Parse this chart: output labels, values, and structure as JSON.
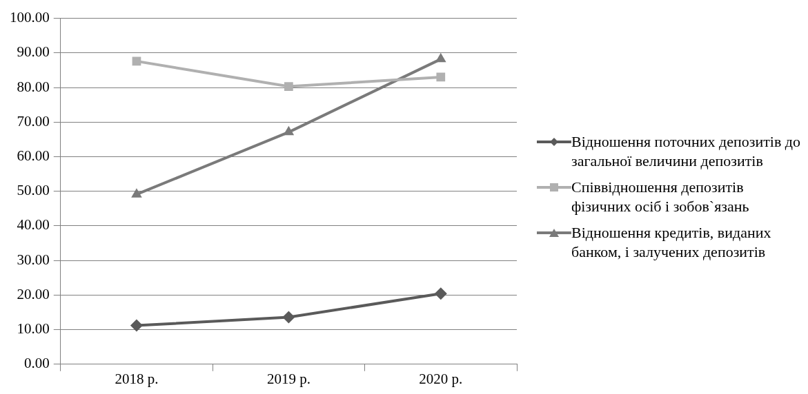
{
  "chart_data": {
    "type": "line",
    "categories": [
      "2018 р.",
      "2019 р.",
      "2020 р."
    ],
    "series": [
      {
        "name": "Відношення поточних депозитів до загальної величини депозитів",
        "color": "#5a5a5a",
        "marker": "diamond",
        "values": [
          11.2,
          13.6,
          20.4
        ]
      },
      {
        "name": "Співвідношення депозитів фізичних осіб і зобов`язань",
        "color": "#b0b0b0",
        "marker": "square",
        "values": [
          87.6,
          80.3,
          83.0
        ]
      },
      {
        "name": "Відношення кредитів, виданих банком, і залучених депозитів",
        "color": "#7a7a7a",
        "marker": "triangle",
        "values": [
          49.1,
          67.1,
          88.2
        ]
      }
    ],
    "ylim": [
      0,
      100
    ],
    "yticks": [
      {
        "value": 0,
        "label": "0.00"
      },
      {
        "value": 10,
        "label": "10.00"
      },
      {
        "value": 20,
        "label": "20.00"
      },
      {
        "value": 30,
        "label": "30.00"
      },
      {
        "value": 40,
        "label": "40.00"
      },
      {
        "value": 50,
        "label": "50.00"
      },
      {
        "value": 60,
        "label": "60.00"
      },
      {
        "value": 70,
        "label": "70.00"
      },
      {
        "value": 80,
        "label": "80.00"
      },
      {
        "value": 90,
        "label": "90.00"
      },
      {
        "value": 100,
        "label": "100.00"
      }
    ],
    "grid": "y",
    "legend": "right",
    "line_style": "solid"
  }
}
